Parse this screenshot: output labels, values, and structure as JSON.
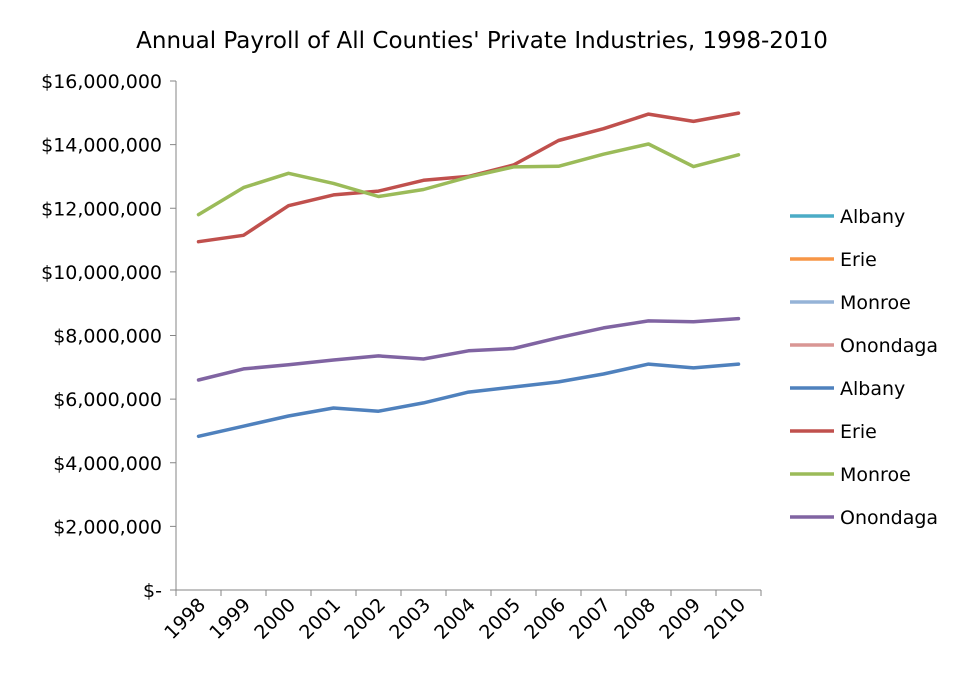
{
  "chart_data": {
    "type": "line",
    "title": "Annual Payroll of All Counties' Private Industries, 1998-2010",
    "xlabel": "",
    "ylabel": "",
    "categories": [
      "1998",
      "1999",
      "2000",
      "2001",
      "2002",
      "2003",
      "2004",
      "2005",
      "2006",
      "2007",
      "2008",
      "2009",
      "2010"
    ],
    "ylim": [
      0,
      16000000
    ],
    "y_ticks": [
      0,
      2000000,
      4000000,
      6000000,
      8000000,
      10000000,
      12000000,
      14000000,
      16000000
    ],
    "y_tick_labels": [
      "$-",
      "$2,000,000",
      "$4,000,000",
      "$6,000,000",
      "$8,000,000",
      "$10,000,000",
      "$12,000,000",
      "$14,000,000",
      "$16,000,000"
    ],
    "grid": false,
    "legend_position": "right",
    "legend": [
      {
        "name": "Albany",
        "color": "#4BACC6"
      },
      {
        "name": "Erie",
        "color": "#F79646"
      },
      {
        "name": "Monroe",
        "color": "#95B3D7"
      },
      {
        "name": "Onondaga",
        "color": "#D99694"
      },
      {
        "name": "Albany",
        "color": "#4F81BD"
      },
      {
        "name": "Erie",
        "color": "#C0504D"
      },
      {
        "name": "Monroe",
        "color": "#9BBB59"
      },
      {
        "name": "Onondaga",
        "color": "#8064A2"
      }
    ],
    "series": [
      {
        "name": "Albany",
        "color": "#4F81BD",
        "values": [
          4830000,
          5150000,
          5470000,
          5720000,
          5620000,
          5880000,
          6220000,
          6380000,
          6540000,
          6790000,
          7100000,
          6980000,
          7100000
        ]
      },
      {
        "name": "Erie",
        "color": "#C0504D",
        "values": [
          10950000,
          11150000,
          12080000,
          12420000,
          12540000,
          12880000,
          13000000,
          13360000,
          14130000,
          14500000,
          14960000,
          14730000,
          14990000
        ]
      },
      {
        "name": "Monroe",
        "color": "#9BBB59",
        "values": [
          11800000,
          12650000,
          13100000,
          12780000,
          12370000,
          12590000,
          12980000,
          13300000,
          13320000,
          13700000,
          14020000,
          13310000,
          13680000
        ]
      },
      {
        "name": "Onondaga",
        "color": "#8064A2",
        "values": [
          6600000,
          6950000,
          7080000,
          7230000,
          7360000,
          7260000,
          7520000,
          7590000,
          7930000,
          8240000,
          8460000,
          8430000,
          8530000
        ]
      }
    ]
  }
}
